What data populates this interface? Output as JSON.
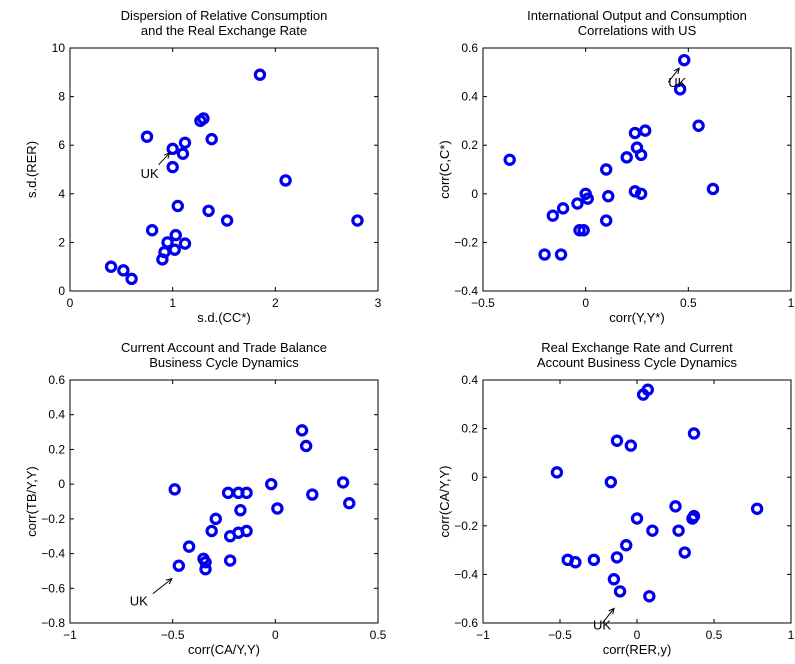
{
  "colors": {
    "marker": "#0000ee",
    "axis": "#000000",
    "background": "#ffffff"
  },
  "chart_data": [
    {
      "type": "scatter",
      "title": [
        "Dispersion of Relative Consumption",
        "and the Real Exchange Rate"
      ],
      "xlabel": "s.d.(CC*)",
      "ylabel": "s.d.(RER)",
      "xlim": [
        0,
        3
      ],
      "ylim": [
        0,
        10
      ],
      "xticks": [
        0,
        1,
        2,
        3
      ],
      "yticks": [
        0,
        2,
        4,
        6,
        8,
        10
      ],
      "xtick_labels": [
        "0",
        "1",
        "2",
        "3"
      ],
      "ytick_labels": [
        "0",
        "2",
        "4",
        "6",
        "8",
        "10"
      ],
      "points": [
        [
          0.4,
          1.0
        ],
        [
          0.52,
          0.85
        ],
        [
          0.6,
          0.5
        ],
        [
          0.75,
          6.35
        ],
        [
          0.8,
          2.5
        ],
        [
          0.9,
          1.3
        ],
        [
          0.92,
          1.6
        ],
        [
          0.95,
          2.0
        ],
        [
          1.0,
          5.85
        ],
        [
          1.0,
          5.1
        ],
        [
          1.02,
          1.7
        ],
        [
          1.03,
          2.3
        ],
        [
          1.05,
          3.5
        ],
        [
          1.1,
          5.65
        ],
        [
          1.12,
          6.1
        ],
        [
          1.12,
          1.95
        ],
        [
          1.27,
          7.0
        ],
        [
          1.3,
          7.1
        ],
        [
          1.35,
          3.3
        ],
        [
          1.38,
          6.25
        ],
        [
          1.53,
          2.9
        ],
        [
          1.85,
          8.9
        ],
        [
          2.1,
          4.55
        ],
        [
          2.8,
          2.9
        ]
      ],
      "annotation": {
        "text": "UK",
        "x": 1.0,
        "y": 5.85
      }
    },
    {
      "type": "scatter",
      "title": [
        "International Output and Consumption",
        "Correlations with US"
      ],
      "xlabel": "corr(Y,Y*)",
      "ylabel": "corr(C,C*)",
      "xlim": [
        -0.5,
        1
      ],
      "ylim": [
        -0.4,
        0.6
      ],
      "xticks": [
        -0.5,
        0,
        0.5,
        1
      ],
      "yticks": [
        -0.4,
        -0.2,
        0,
        0.2,
        0.4,
        0.6
      ],
      "xtick_labels": [
        "−0.5",
        "0",
        "0.5",
        "1"
      ],
      "ytick_labels": [
        "−0.4",
        "−0.2",
        "0",
        "0.2",
        "0.4",
        "0.6"
      ],
      "points": [
        [
          -0.37,
          0.14
        ],
        [
          -0.2,
          -0.25
        ],
        [
          -0.16,
          -0.09
        ],
        [
          -0.12,
          -0.25
        ],
        [
          -0.11,
          -0.06
        ],
        [
          -0.04,
          -0.04
        ],
        [
          -0.03,
          -0.15
        ],
        [
          -0.01,
          -0.15
        ],
        [
          0.0,
          0.0
        ],
        [
          0.01,
          -0.02
        ],
        [
          0.1,
          0.1
        ],
        [
          0.1,
          -0.11
        ],
        [
          0.11,
          -0.01
        ],
        [
          0.2,
          0.15
        ],
        [
          0.24,
          0.25
        ],
        [
          0.24,
          0.01
        ],
        [
          0.25,
          0.19
        ],
        [
          0.27,
          0.0
        ],
        [
          0.27,
          0.16
        ],
        [
          0.29,
          0.26
        ],
        [
          0.46,
          0.43
        ],
        [
          0.48,
          0.55
        ],
        [
          0.55,
          0.28
        ],
        [
          0.62,
          0.02
        ]
      ],
      "annotation": {
        "text": "UK",
        "x": 0.48,
        "y": 0.55
      }
    },
    {
      "type": "scatter",
      "title": [
        "Current Account and Trade Balance",
        "Business Cycle Dynamics"
      ],
      "xlabel": "corr(CA/Y,Y)",
      "ylabel": "corr(TB/Y,Y)",
      "xlim": [
        -1,
        0.5
      ],
      "ylim": [
        -0.8,
        0.6
      ],
      "xticks": [
        -1,
        -0.5,
        0,
        0.5
      ],
      "yticks": [
        -0.8,
        -0.6,
        -0.4,
        -0.2,
        0,
        0.2,
        0.4,
        0.6
      ],
      "xtick_labels": [
        "−1",
        "−0.5",
        "0",
        "0.5"
      ],
      "ytick_labels": [
        "−0.8",
        "−0.6",
        "−0.4",
        "−0.2",
        "0",
        "0.2",
        "0.4",
        "0.6"
      ],
      "points": [
        [
          -0.49,
          -0.03
        ],
        [
          -0.47,
          -0.47
        ],
        [
          -0.42,
          -0.36
        ],
        [
          -0.35,
          -0.43
        ],
        [
          -0.34,
          -0.45
        ],
        [
          -0.34,
          -0.49
        ],
        [
          -0.31,
          -0.27
        ],
        [
          -0.29,
          -0.2
        ],
        [
          -0.23,
          -0.05
        ],
        [
          -0.22,
          -0.3
        ],
        [
          -0.22,
          -0.44
        ],
        [
          -0.18,
          -0.28
        ],
        [
          -0.18,
          -0.05
        ],
        [
          -0.17,
          -0.15
        ],
        [
          -0.14,
          -0.05
        ],
        [
          -0.14,
          -0.27
        ],
        [
          -0.02,
          0.0
        ],
        [
          0.01,
          -0.14
        ],
        [
          0.13,
          0.31
        ],
        [
          0.15,
          0.22
        ],
        [
          0.18,
          -0.06
        ],
        [
          0.33,
          0.01
        ],
        [
          0.36,
          -0.11
        ]
      ],
      "annotation": {
        "text": "UK",
        "x": -0.47,
        "y": -0.47
      }
    },
    {
      "type": "scatter",
      "title": [
        "Real Exchange Rate and Current",
        "Account Business Cycle Dynamics"
      ],
      "xlabel": "corr(RER,y)",
      "ylabel": "corr(CA/Y,Y)",
      "xlim": [
        -1,
        1
      ],
      "ylim": [
        -0.6,
        0.4
      ],
      "xticks": [
        -1,
        -0.5,
        0,
        0.5,
        1
      ],
      "yticks": [
        -0.6,
        -0.4,
        -0.2,
        0,
        0.2,
        0.4
      ],
      "xtick_labels": [
        "−1",
        "−0.5",
        "0",
        "0.5",
        "1"
      ],
      "ytick_labels": [
        "−0.6",
        "−0.4",
        "−0.2",
        "0",
        "0.2",
        "0.4"
      ],
      "points": [
        [
          -0.52,
          0.02
        ],
        [
          -0.45,
          -0.34
        ],
        [
          -0.4,
          -0.35
        ],
        [
          -0.28,
          -0.34
        ],
        [
          -0.17,
          -0.02
        ],
        [
          -0.15,
          -0.42
        ],
        [
          -0.13,
          0.15
        ],
        [
          -0.13,
          -0.33
        ],
        [
          -0.11,
          -0.47
        ],
        [
          -0.07,
          -0.28
        ],
        [
          -0.04,
          0.13
        ],
        [
          0.0,
          -0.17
        ],
        [
          0.04,
          0.34
        ],
        [
          0.07,
          0.36
        ],
        [
          0.08,
          -0.49
        ],
        [
          0.1,
          -0.22
        ],
        [
          0.25,
          -0.12
        ],
        [
          0.27,
          -0.22
        ],
        [
          0.31,
          -0.31
        ],
        [
          0.36,
          -0.17
        ],
        [
          0.37,
          -0.16
        ],
        [
          0.37,
          0.18
        ],
        [
          0.78,
          -0.13
        ]
      ],
      "annotation": {
        "text": "UK",
        "x": -0.11,
        "y": -0.47
      }
    }
  ]
}
